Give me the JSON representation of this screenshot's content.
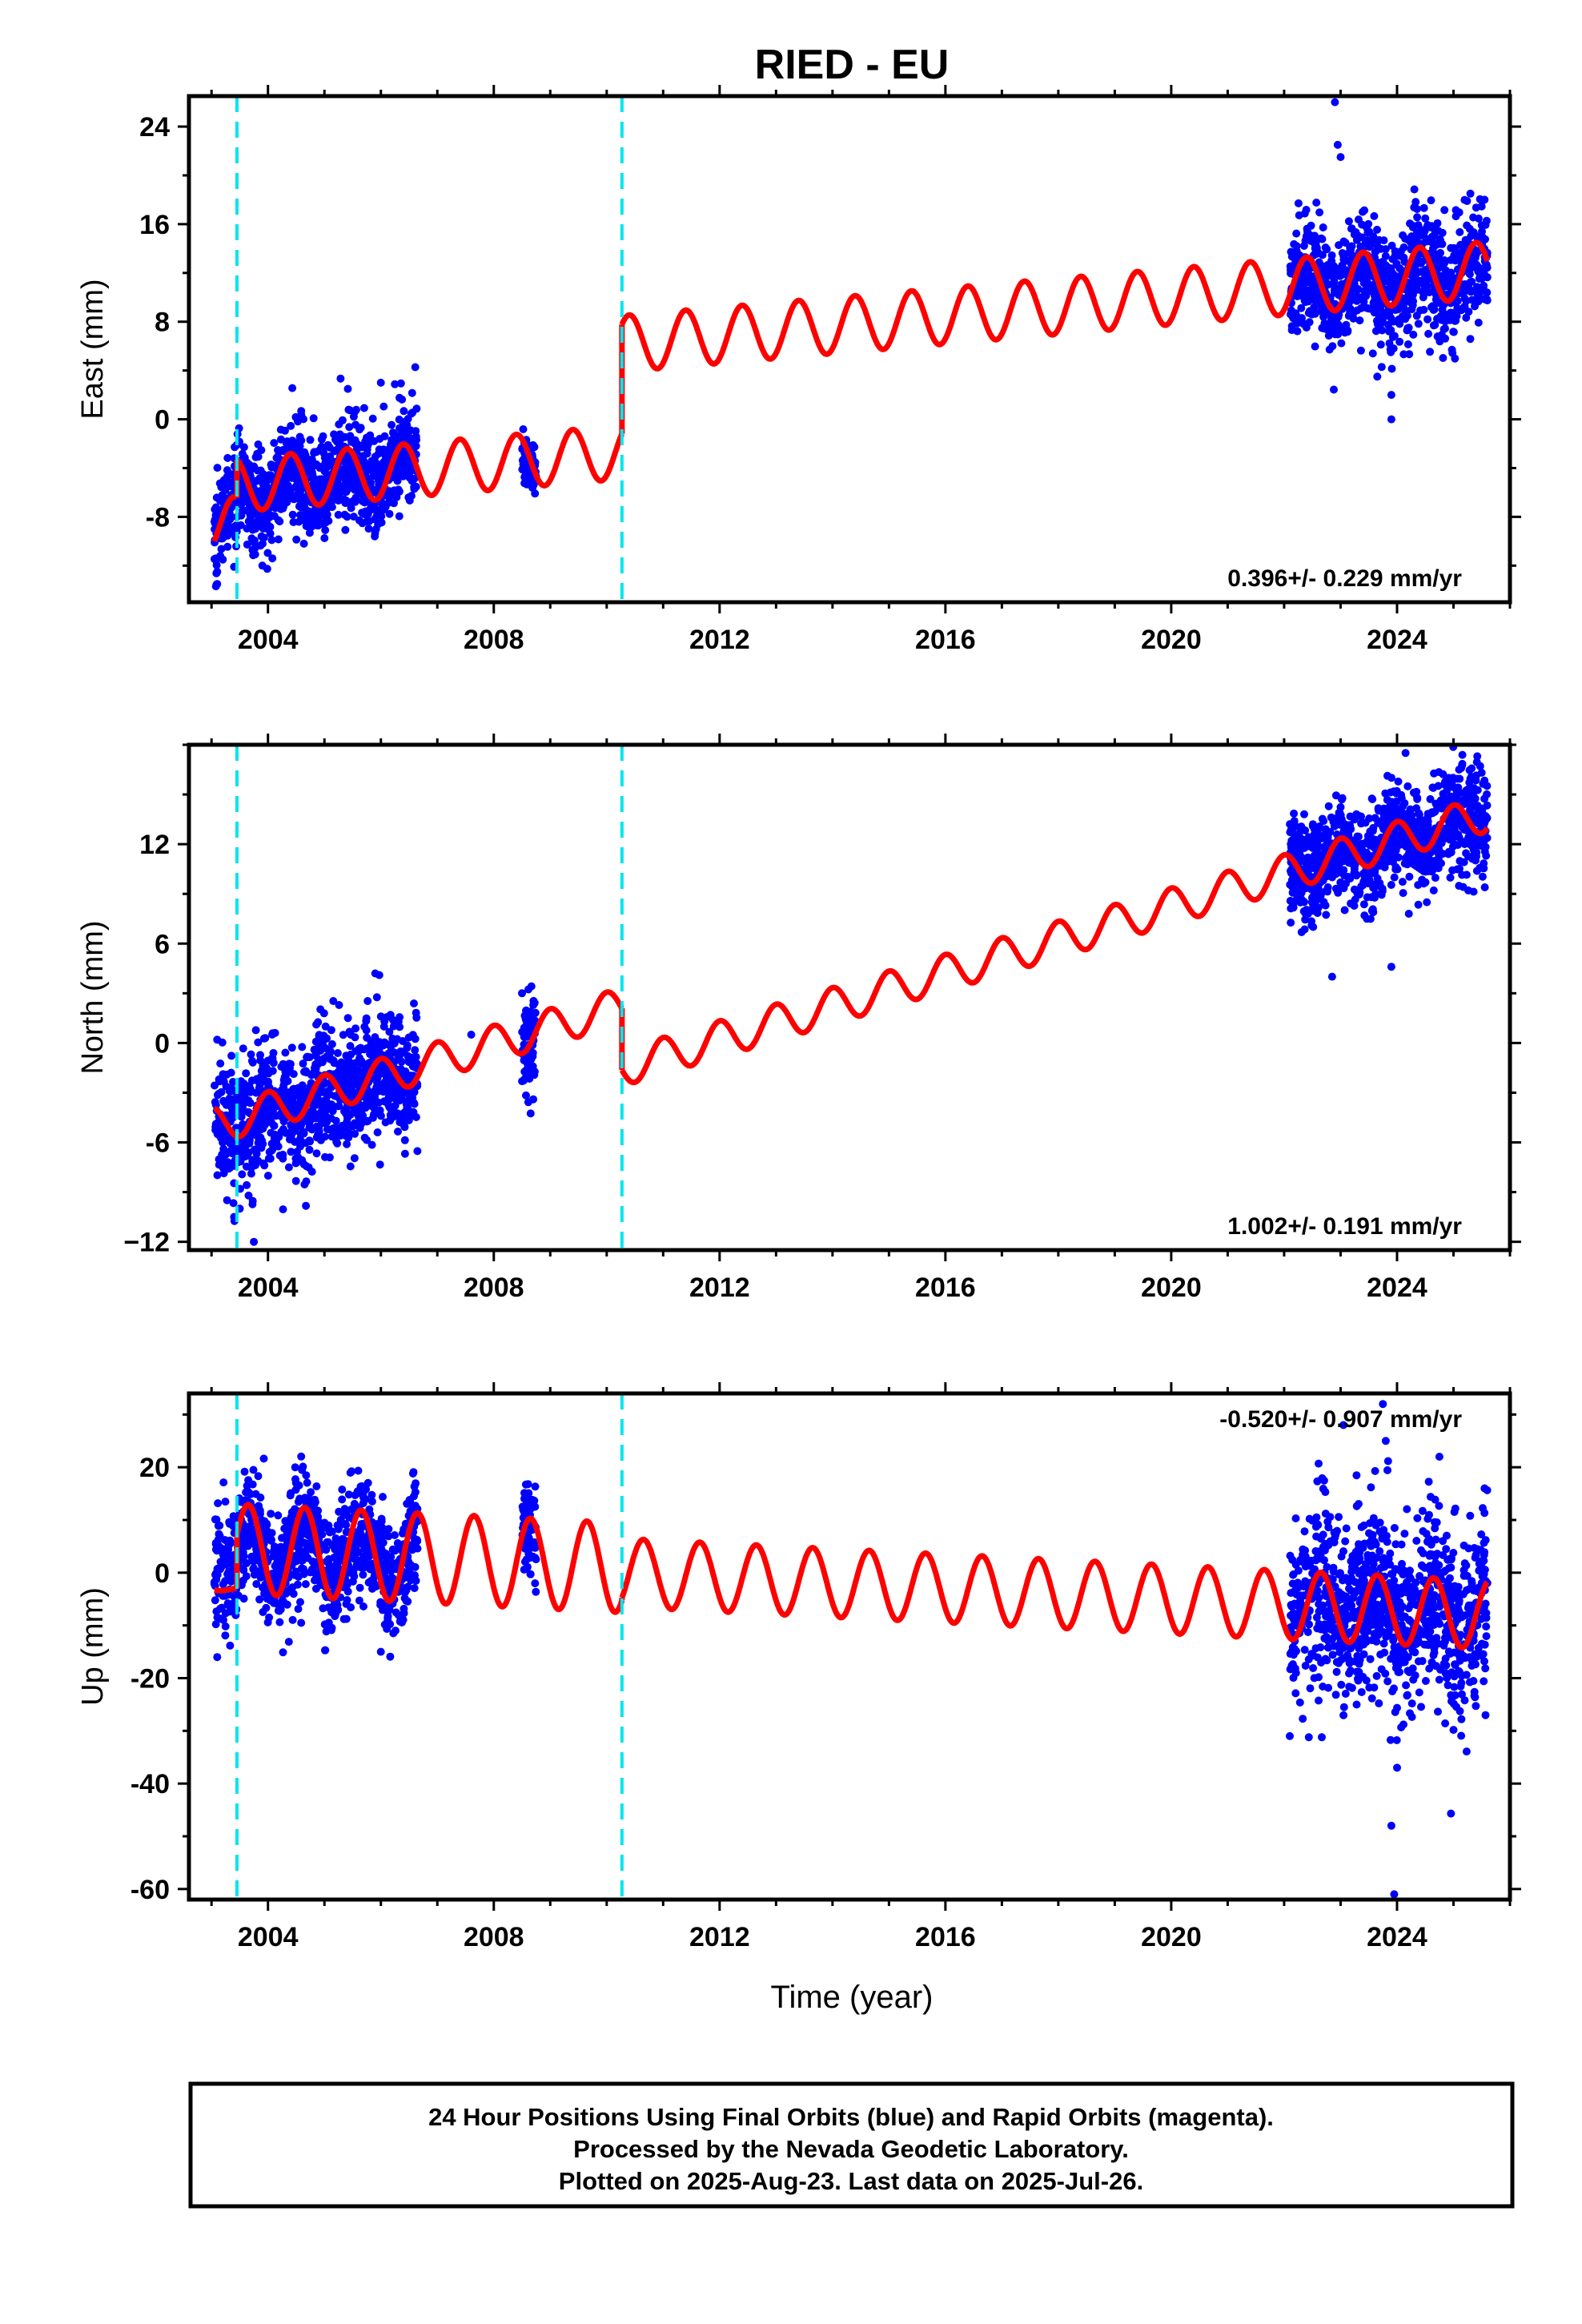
{
  "title": "RIED - EU",
  "xlabel": "Time (year)",
  "colors": {
    "data": "#0000ff",
    "model": "#ff0000",
    "steps": "#00e5ee",
    "frame": "#000000"
  },
  "footer": {
    "line1": "24 Hour Positions Using Final Orbits (blue) and Rapid Orbits (magenta).",
    "line2": "Processed by the Nevada Geodetic Laboratory.",
    "line3": "Plotted on 2025-Aug-23. Last data on 2025-Jul-26."
  },
  "chart_data": [
    {
      "type": "scatter",
      "ylabel": "East (mm)",
      "rate_label": "0.396+/- 0.229 mm/yr",
      "rate_position": "bottom-right",
      "xlim": [
        2002.6,
        2026.0
      ],
      "ylim": [
        -15,
        26.5
      ],
      "xticks": [
        "2004",
        "2008",
        "2012",
        "2016",
        "2020",
        "2024"
      ],
      "yticks": [
        "24",
        "16",
        "8",
        "0",
        "-8"
      ],
      "step_epochs": [
        2003.45,
        2010.27
      ],
      "data_segments": [
        {
          "x_range": [
            2003.05,
            2006.65
          ],
          "center_at_start": -7.3,
          "center_at_end": -3.0,
          "scatter": 2.0
        },
        {
          "x_range": [
            2008.5,
            2008.75
          ],
          "center_at_start": -3.8,
          "center_at_end": -4.5,
          "scatter": 1.0
        },
        {
          "x_range": [
            2022.1,
            2025.6
          ],
          "center_at_start": 10.8,
          "center_at_end": 11.8,
          "scatter": 2.2
        }
      ],
      "outliers": [
        {
          "x": 2003.1,
          "y": -13.5
        },
        {
          "x": 2003.1,
          "y": -12.5
        },
        {
          "x": 2003.2,
          "y": -11.5
        },
        {
          "x": 2003.9,
          "y": -12.0
        },
        {
          "x": 2006.0,
          "y": 3.0
        },
        {
          "x": 2022.9,
          "y": 26.0
        },
        {
          "x": 2022.95,
          "y": 22.5
        },
        {
          "x": 2023.0,
          "y": 21.5
        },
        {
          "x": 2023.65,
          "y": 3.5
        },
        {
          "x": 2023.9,
          "y": 2.0
        },
        {
          "x": 2023.9,
          "y": 0.0
        },
        {
          "x": 2025.3,
          "y": 18.5
        },
        {
          "x": 2025.55,
          "y": 18.0
        }
      ],
      "model": {
        "segments": [
          {
            "x_range": [
              2003.05,
              2003.45
            ],
            "value_at_start": -8.7,
            "rate": 0.396,
            "seasonal_amplitude": 2.2,
            "seasonal_peak": 0.4
          },
          {
            "x_range": [
              2003.45,
              2010.27
            ],
            "value_at_start": -5.4,
            "rate": 0.396,
            "seasonal_amplitude": 2.2,
            "seasonal_peak": 0.4
          },
          {
            "x_range": [
              2010.27,
              2025.6
            ],
            "value_at_start": 6.2,
            "rate": 0.396,
            "seasonal_amplitude": 2.3,
            "seasonal_peak": 0.4
          }
        ]
      }
    },
    {
      "type": "scatter",
      "ylabel": "North (mm)",
      "rate_label": "1.002+/- 0.191 mm/yr",
      "rate_position": "bottom-right",
      "xlim": [
        2002.6,
        2026.0
      ],
      "ylim": [
        -12.5,
        18
      ],
      "xticks": [
        "2004",
        "2008",
        "2012",
        "2016",
        "2020",
        "2024"
      ],
      "yticks": [
        "12",
        "6",
        "0",
        "-6",
        "−12"
      ],
      "step_epochs": [
        2003.45,
        2010.27
      ],
      "data_segments": [
        {
          "x_range": [
            2003.05,
            2006.65
          ],
          "center_at_start": -5.5,
          "center_at_end": -2.0,
          "scatter": 1.8
        },
        {
          "x_range": [
            2008.5,
            2008.75
          ],
          "center_at_start": 0.0,
          "center_at_end": -1.0,
          "scatter": 1.5
        },
        {
          "x_range": [
            2022.1,
            2025.6
          ],
          "center_at_start": 10.5,
          "center_at_end": 13.5,
          "scatter": 1.6
        }
      ],
      "outliers": [
        {
          "x": 2003.1,
          "y": 0.2
        },
        {
          "x": 2003.4,
          "y": -10.5
        },
        {
          "x": 2003.5,
          "y": -10.0
        },
        {
          "x": 2003.75,
          "y": -12.0
        },
        {
          "x": 2005.9,
          "y": 4.2
        },
        {
          "x": 2007.6,
          "y": 0.5
        },
        {
          "x": 2008.5,
          "y": 3.0
        },
        {
          "x": 2008.7,
          "y": -3.4
        },
        {
          "x": 2022.85,
          "y": 4.0
        },
        {
          "x": 2023.9,
          "y": 4.6
        },
        {
          "x": 2024.15,
          "y": 17.5
        },
        {
          "x": 2025.1,
          "y": 16.5
        }
      ],
      "model": {
        "segments": [
          {
            "x_range": [
              2003.05,
              2010.27
            ],
            "value_at_start": -5.0,
            "rate": 1.002,
            "seasonal_amplitude": 1.1,
            "seasonal_peak": 0.0
          },
          {
            "x_range": [
              2010.27,
              2025.6
            ],
            "value_at_start": -1.5,
            "rate": 1.002,
            "seasonal_amplitude": 1.1,
            "seasonal_peak": 0.0
          }
        ]
      }
    },
    {
      "type": "scatter",
      "ylabel": "Up (mm)",
      "rate_label": "-0.520+/- 0.907 mm/yr",
      "rate_position": "top-right",
      "xlim": [
        2002.6,
        2026.0
      ],
      "ylim": [
        -62,
        34
      ],
      "xticks": [
        "2004",
        "2008",
        "2012",
        "2016",
        "2020",
        "2024"
      ],
      "yticks": [
        "20",
        "0",
        "-20",
        "-40",
        "-60"
      ],
      "step_epochs": [
        2003.45,
        2010.27
      ],
      "data_segments": [
        {
          "x_range": [
            2003.05,
            2006.65
          ],
          "center_at_start": 5.0,
          "center_at_end": 3.0,
          "scatter": 5.5
        },
        {
          "x_range": [
            2008.5,
            2008.75
          ],
          "center_at_start": 8.0,
          "center_at_end": 5.0,
          "scatter": 5.0
        },
        {
          "x_range": [
            2022.1,
            2025.6
          ],
          "center_at_start": -6.0,
          "center_at_end": -7.0,
          "scatter": 8.5
        }
      ],
      "outliers": [
        {
          "x": 2003.1,
          "y": -16.0
        },
        {
          "x": 2006.0,
          "y": -15.0
        },
        {
          "x": 2022.1,
          "y": -31.0
        },
        {
          "x": 2023.05,
          "y": 28.0
        },
        {
          "x": 2023.75,
          "y": 32.0
        },
        {
          "x": 2023.8,
          "y": 25.0
        },
        {
          "x": 2023.9,
          "y": -48.0
        },
        {
          "x": 2023.95,
          "y": -61.0
        },
        {
          "x": 2024.0,
          "y": -37.0
        },
        {
          "x": 2024.75,
          "y": 22.0
        },
        {
          "x": 2025.55,
          "y": 16.0
        }
      ],
      "model": {
        "segments": [
          {
            "x_range": [
              2003.05,
              2003.45
            ],
            "value_at_start": -3.0,
            "rate": 0,
            "seasonal_amplitude": 0.4,
            "seasonal_peak": 0.65
          },
          {
            "x_range": [
              2003.45,
              2010.27
            ],
            "value_at_start": 4.5,
            "rate": -0.52,
            "seasonal_amplitude": 8.5,
            "seasonal_peak": 0.65
          },
          {
            "x_range": [
              2010.27,
              2025.6
            ],
            "value_at_start": 0.0,
            "rate": -0.52,
            "seasonal_amplitude": 6.5,
            "seasonal_peak": 0.65
          }
        ]
      }
    }
  ]
}
